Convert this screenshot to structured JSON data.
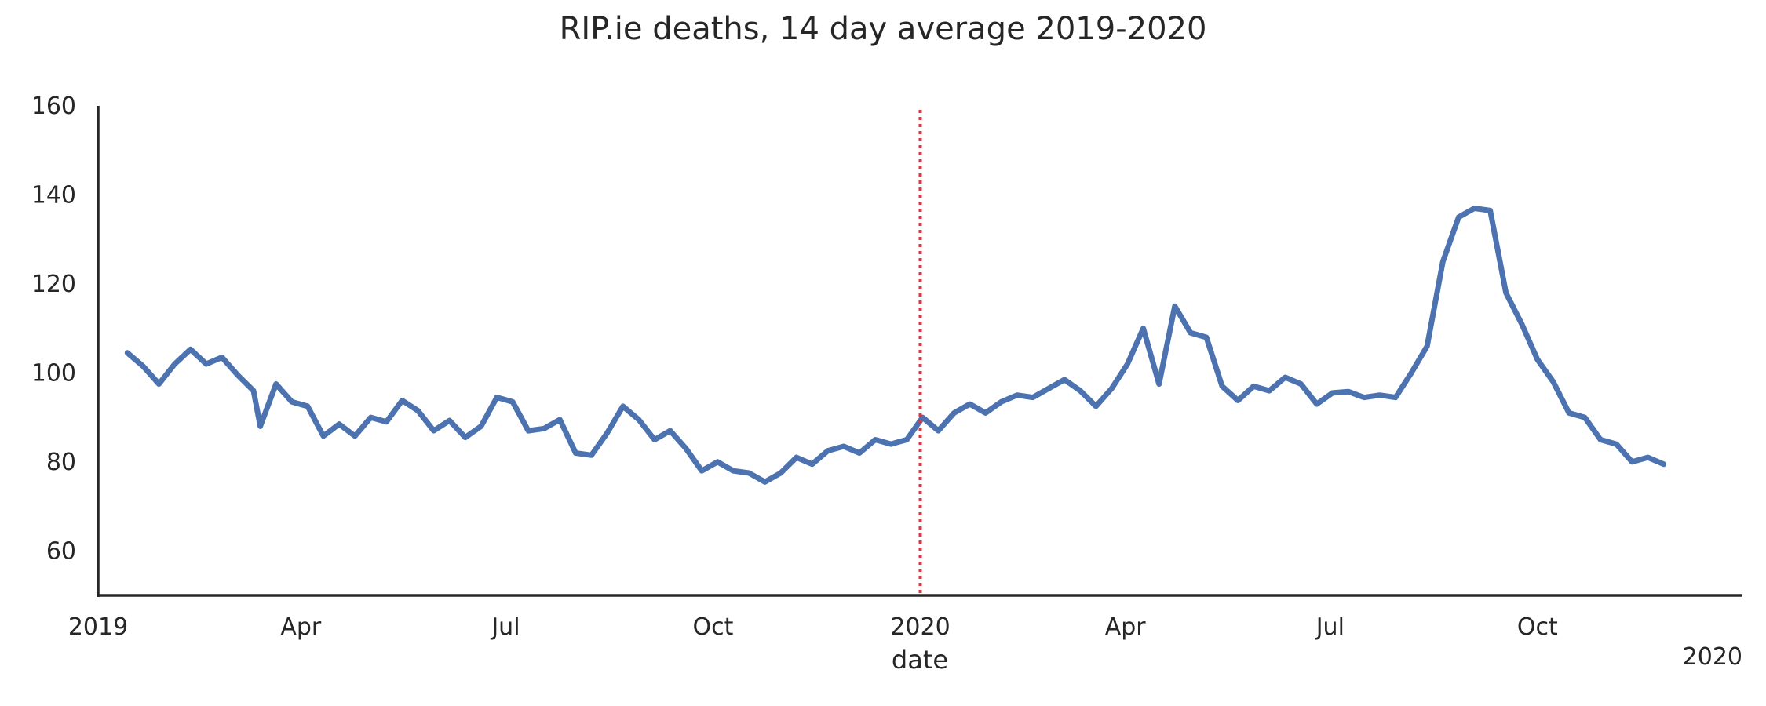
{
  "chart_data": {
    "type": "line",
    "title": "RIP.ie deaths, 14 day average 2019-2020",
    "xlabel": "date",
    "ylabel": "",
    "x_offset_label": "2020",
    "xlim": [
      "2019-01-01",
      "2020-12-31"
    ],
    "ylim": [
      50,
      160
    ],
    "yticks": [
      60,
      80,
      100,
      120,
      140,
      160
    ],
    "xticks": [
      {
        "date": "2019-01-01",
        "label": "2019"
      },
      {
        "date": "2019-04-01",
        "label": "Apr"
      },
      {
        "date": "2019-07-01",
        "label": "Jul"
      },
      {
        "date": "2019-10-01",
        "label": "Oct"
      },
      {
        "date": "2020-01-01",
        "label": "2020"
      },
      {
        "date": "2020-04-01",
        "label": "Apr"
      },
      {
        "date": "2020-07-01",
        "label": "Jul"
      },
      {
        "date": "2020-10-01",
        "label": "Oct"
      }
    ],
    "grid": false,
    "vline": {
      "date": "2020-01-01",
      "color": "#dc3545",
      "style": "dotted"
    },
    "series": [
      {
        "color": "#4c72b0",
        "points": [
          [
            "2019-01-14",
            104.5
          ],
          [
            "2019-01-21",
            101.5
          ],
          [
            "2019-01-28",
            97.5
          ],
          [
            "2019-02-04",
            102.0
          ],
          [
            "2019-02-11",
            105.3
          ],
          [
            "2019-02-18",
            102.0
          ],
          [
            "2019-02-25",
            103.5
          ],
          [
            "2019-03-04",
            99.5
          ],
          [
            "2019-03-11",
            96.0
          ],
          [
            "2019-03-14",
            88.0
          ],
          [
            "2019-03-21",
            97.5
          ],
          [
            "2019-03-28",
            93.5
          ],
          [
            "2019-04-04",
            92.5
          ],
          [
            "2019-04-11",
            85.8
          ],
          [
            "2019-04-18",
            88.5
          ],
          [
            "2019-04-25",
            85.8
          ],
          [
            "2019-05-02",
            90.0
          ],
          [
            "2019-05-09",
            89.0
          ],
          [
            "2019-05-16",
            93.8
          ],
          [
            "2019-05-23",
            91.5
          ],
          [
            "2019-05-30",
            87.0
          ],
          [
            "2019-06-06",
            89.3
          ],
          [
            "2019-06-13",
            85.5
          ],
          [
            "2019-06-20",
            88.0
          ],
          [
            "2019-06-27",
            94.5
          ],
          [
            "2019-07-04",
            93.5
          ],
          [
            "2019-07-11",
            87.0
          ],
          [
            "2019-07-18",
            87.5
          ],
          [
            "2019-07-25",
            89.5
          ],
          [
            "2019-08-01",
            82.0
          ],
          [
            "2019-08-08",
            81.5
          ],
          [
            "2019-08-15",
            86.5
          ],
          [
            "2019-08-22",
            92.5
          ],
          [
            "2019-08-29",
            89.5
          ],
          [
            "2019-09-05",
            85.0
          ],
          [
            "2019-09-12",
            87.0
          ],
          [
            "2019-09-19",
            83.0
          ],
          [
            "2019-09-26",
            78.0
          ],
          [
            "2019-10-03",
            80.0
          ],
          [
            "2019-10-10",
            78.0
          ],
          [
            "2019-10-17",
            77.5
          ],
          [
            "2019-10-24",
            75.5
          ],
          [
            "2019-10-31",
            77.5
          ],
          [
            "2019-11-07",
            81.0
          ],
          [
            "2019-11-14",
            79.5
          ],
          [
            "2019-11-21",
            82.5
          ],
          [
            "2019-11-28",
            83.5
          ],
          [
            "2019-12-05",
            82.0
          ],
          [
            "2019-12-12",
            85.0
          ],
          [
            "2019-12-19",
            84.0
          ],
          [
            "2019-12-26",
            85.0
          ],
          [
            "2020-01-02",
            90.0
          ],
          [
            "2020-01-09",
            87.0
          ],
          [
            "2020-01-16",
            91.0
          ],
          [
            "2020-01-23",
            93.0
          ],
          [
            "2020-01-30",
            91.0
          ],
          [
            "2020-02-06",
            93.5
          ],
          [
            "2020-02-13",
            95.0
          ],
          [
            "2020-02-20",
            94.5
          ],
          [
            "2020-02-27",
            96.5
          ],
          [
            "2020-03-05",
            98.5
          ],
          [
            "2020-03-12",
            96.0
          ],
          [
            "2020-03-19",
            92.5
          ],
          [
            "2020-03-26",
            96.5
          ],
          [
            "2020-04-02",
            102.0
          ],
          [
            "2020-04-09",
            110.0
          ],
          [
            "2020-04-16",
            97.5
          ],
          [
            "2020-04-19",
            105.0
          ],
          [
            "2020-04-23",
            115.0
          ],
          [
            "2020-04-30",
            109.0
          ],
          [
            "2020-05-07",
            108.0
          ],
          [
            "2020-05-14",
            97.0
          ],
          [
            "2020-05-21",
            93.8
          ],
          [
            "2020-05-28",
            97.0
          ],
          [
            "2020-06-04",
            96.0
          ],
          [
            "2020-06-11",
            99.0
          ],
          [
            "2020-06-18",
            97.5
          ],
          [
            "2020-06-25",
            93.0
          ],
          [
            "2020-07-02",
            95.5
          ],
          [
            "2020-07-09",
            95.8
          ],
          [
            "2020-07-16",
            94.5
          ],
          [
            "2020-07-23",
            95.0
          ],
          [
            "2020-07-30",
            94.5
          ],
          [
            "2020-08-06",
            100.0
          ],
          [
            "2020-08-13",
            106.0
          ],
          [
            "2020-08-20",
            125.0
          ],
          [
            "2020-08-27",
            135.0
          ],
          [
            "2020-09-03",
            137.0
          ],
          [
            "2020-09-10",
            136.5
          ],
          [
            "2020-09-17",
            118.0
          ],
          [
            "2020-09-24",
            111.0
          ],
          [
            "2020-10-01",
            103.0
          ],
          [
            "2020-10-08",
            98.0
          ],
          [
            "2020-10-15",
            91.0
          ],
          [
            "2020-10-22",
            90.0
          ],
          [
            "2020-10-29",
            85.0
          ],
          [
            "2020-11-05",
            84.0
          ],
          [
            "2020-11-12",
            80.0
          ],
          [
            "2020-11-19",
            81.0
          ],
          [
            "2020-11-26",
            79.5
          ]
        ]
      }
    ]
  }
}
